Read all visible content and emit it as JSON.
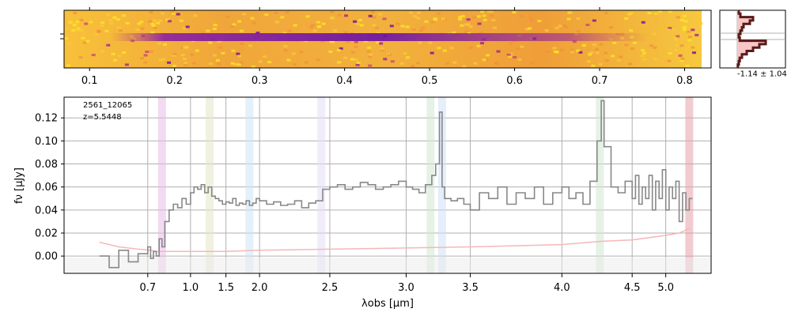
{
  "chart_data": [
    {
      "type": "heatmap",
      "panel": "2d-spectrum",
      "x_ticks": [
        0.1,
        0.2,
        0.3,
        0.4,
        0.5,
        0.6,
        0.7,
        0.8
      ],
      "xlim": [
        0.07,
        0.82
      ],
      "colormap": "plasma",
      "trace": "dark horizontal band near the central rows, from about 0.14 to 0.78"
    },
    {
      "type": "line",
      "panel": "1d-spectrum",
      "annotation": [
        "2561_12065",
        "z=5.5448"
      ],
      "xlabel": "λobs [μm]",
      "ylabel": "fν [μJy]",
      "xlim": [
        0.58,
        5.4
      ],
      "ylim": [
        -0.015,
        0.138
      ],
      "x_ticks": [
        0.7,
        1.0,
        1.5,
        2.0,
        2.5,
        3.0,
        3.5,
        4.0,
        4.5,
        5.0
      ],
      "x_tick_labels": [
        "0.7",
        "1.0",
        "1.5",
        "2.0",
        "2.5",
        "3.0",
        "3.5",
        "4.0",
        "4.5",
        "5.0"
      ],
      "y_ticks": [
        0.0,
        0.02,
        0.04,
        0.06,
        0.08,
        0.1,
        0.12
      ],
      "y_tick_labels": [
        "0.00",
        "0.02",
        "0.04",
        "0.06",
        "0.08",
        "0.10",
        "0.12"
      ],
      "grid": true,
      "x_scale": "nonlinear (prism resolution)",
      "x_display_positions": [
        0.058,
        0.137,
        0.207,
        0.265,
        0.32,
        0.435,
        0.56,
        0.665,
        0.815,
        0.93,
        0.985
      ],
      "x_display_values": [
        0.6,
        0.7,
        1.0,
        1.5,
        2.0,
        2.5,
        3.0,
        3.5,
        4.0,
        4.5,
        5.0
      ],
      "shaded_lines": [
        {
          "x": 0.8,
          "color": "#e8bce8"
        },
        {
          "x": 1.27,
          "color": "#e6e6c8"
        },
        {
          "x": 1.85,
          "color": "#cfe6f5"
        },
        {
          "x": 2.44,
          "color": "#e6dcf5"
        },
        {
          "x": 3.19,
          "color": "#cfe8cf"
        },
        {
          "x": 3.28,
          "color": "#cfe0f5"
        },
        {
          "x": 4.27,
          "color": "#cfe8cf"
        },
        {
          "x": 5.35,
          "color": "#e8a0a8"
        }
      ],
      "series": [
        {
          "color": "#888888",
          "x": [
            0.6,
            0.62,
            0.64,
            0.66,
            0.68,
            0.7,
            0.72,
            0.74,
            0.76,
            0.78,
            0.8,
            0.82,
            0.85,
            0.88,
            0.91,
            0.94,
            0.97,
            1.0,
            1.05,
            1.1,
            1.15,
            1.2,
            1.25,
            1.3,
            1.35,
            1.4,
            1.45,
            1.5,
            1.55,
            1.6,
            1.65,
            1.7,
            1.75,
            1.8,
            1.85,
            1.9,
            1.95,
            2.0,
            2.05,
            2.1,
            2.15,
            2.2,
            2.25,
            2.3,
            2.35,
            2.4,
            2.45,
            2.5,
            2.55,
            2.6,
            2.65,
            2.7,
            2.75,
            2.8,
            2.85,
            2.9,
            2.95,
            3.0,
            3.05,
            3.1,
            3.15,
            3.2,
            3.23,
            3.26,
            3.28,
            3.3,
            3.35,
            3.4,
            3.45,
            3.5,
            3.55,
            3.6,
            3.65,
            3.7,
            3.75,
            3.8,
            3.85,
            3.9,
            3.95,
            4.0,
            4.05,
            4.1,
            4.15,
            4.2,
            4.25,
            4.28,
            4.3,
            4.35,
            4.4,
            4.45,
            4.5,
            4.55,
            4.6,
            4.65,
            4.7,
            4.75,
            4.8,
            4.85,
            4.9,
            4.95,
            5.0,
            5.05,
            5.1,
            5.15,
            5.2,
            5.25,
            5.3,
            5.35
          ],
          "y": [
            0.0,
            -0.01,
            0.005,
            -0.005,
            0.002,
            0.008,
            -0.002,
            0.004,
            0.0,
            0.015,
            0.008,
            0.03,
            0.04,
            0.045,
            0.042,
            0.05,
            0.045,
            0.055,
            0.06,
            0.058,
            0.062,
            0.055,
            0.06,
            0.052,
            0.05,
            0.048,
            0.045,
            0.047,
            0.046,
            0.05,
            0.044,
            0.046,
            0.045,
            0.048,
            0.044,
            0.046,
            0.05,
            0.048,
            0.045,
            0.047,
            0.044,
            0.045,
            0.048,
            0.042,
            0.046,
            0.048,
            0.058,
            0.06,
            0.062,
            0.058,
            0.06,
            0.064,
            0.062,
            0.058,
            0.06,
            0.062,
            0.065,
            0.06,
            0.058,
            0.055,
            0.062,
            0.07,
            0.08,
            0.125,
            0.06,
            0.05,
            0.048,
            0.05,
            0.045,
            0.04,
            0.055,
            0.05,
            0.06,
            0.045,
            0.055,
            0.05,
            0.06,
            0.045,
            0.055,
            0.06,
            0.05,
            0.055,
            0.045,
            0.065,
            0.1,
            0.135,
            0.095,
            0.06,
            0.055,
            0.065,
            0.05,
            0.07,
            0.045,
            0.06,
            0.05,
            0.07,
            0.04,
            0.065,
            0.05,
            0.075,
            0.04,
            0.06,
            0.05,
            0.065,
            0.03,
            0.055,
            0.04,
            0.05
          ]
        },
        {
          "color": "#f4b8b8",
          "x": [
            0.6,
            0.64,
            0.68,
            0.72,
            0.76,
            0.8,
            1.0,
            1.5,
            2.0,
            2.5,
            3.0,
            3.5,
            4.0,
            4.2,
            4.3,
            4.5,
            5.0,
            5.2,
            5.35
          ],
          "y": [
            0.012,
            0.008,
            0.006,
            0.005,
            0.004,
            0.004,
            0.004,
            0.004,
            0.005,
            0.006,
            0.007,
            0.008,
            0.01,
            0.012,
            0.013,
            0.014,
            0.018,
            0.02,
            0.024
          ]
        }
      ]
    },
    {
      "type": "line",
      "panel": "profile",
      "annotation": "-1.14 ± 1.04",
      "profile_values": [
        0.05,
        0.1,
        0.5,
        0.4,
        0.2,
        0.15,
        0.1,
        0.05,
        0.08,
        0.9,
        0.7,
        0.5,
        0.3,
        0.15,
        0.08,
        0.05,
        0.02
      ],
      "fill_color": "#f7c6c6",
      "line_color": "#5a1a1a"
    }
  ]
}
